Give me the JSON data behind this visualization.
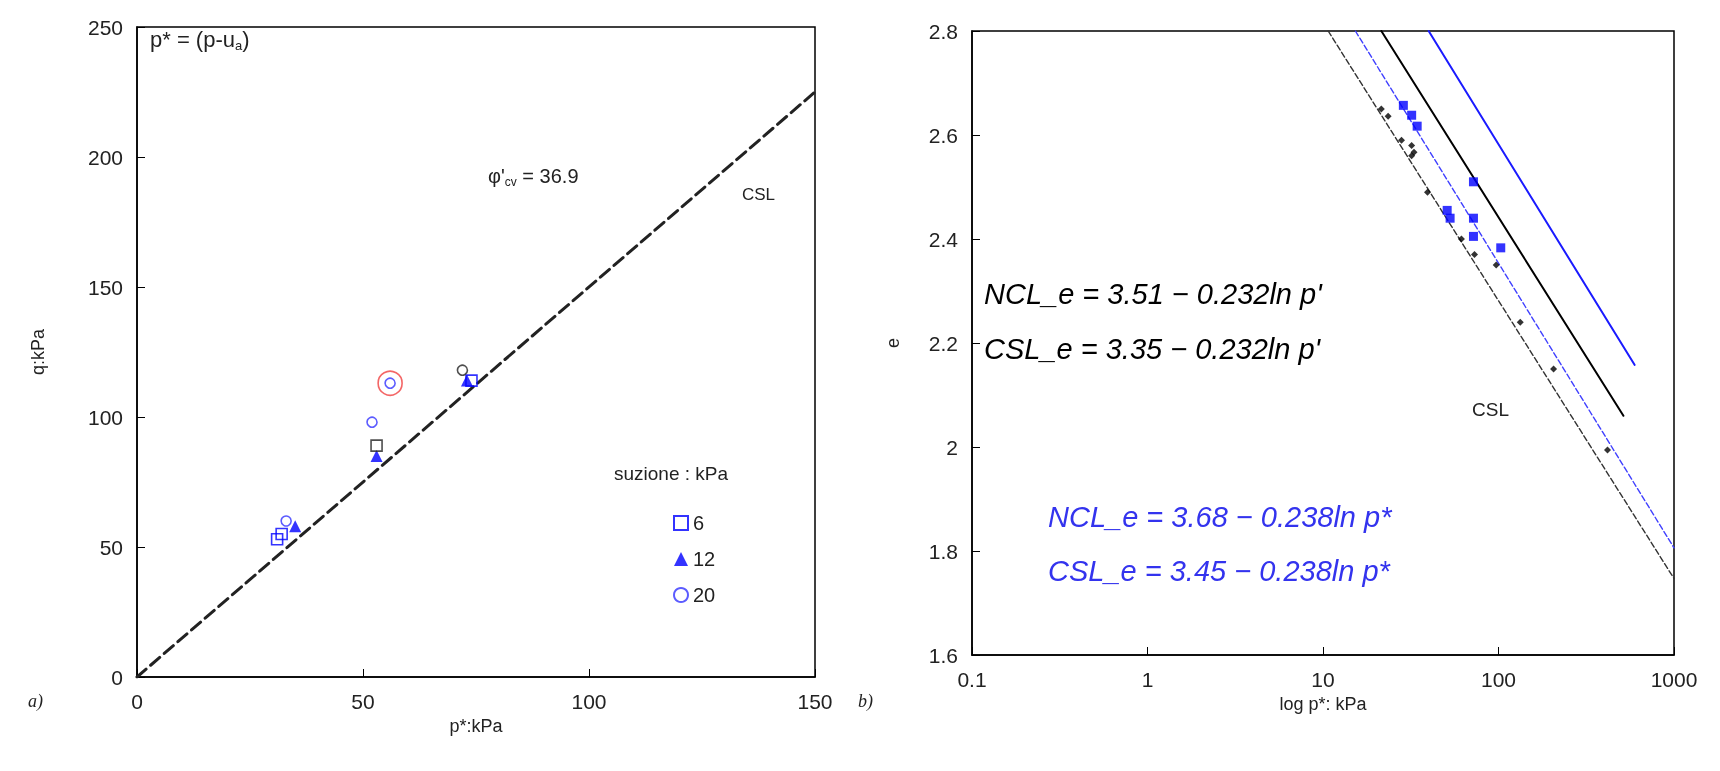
{
  "chart_data": [
    {
      "type": "scatter",
      "xlabel": "p*:kPa",
      "ylabel": "q:kPa",
      "xlim": [
        0,
        150
      ],
      "xticks": [
        0,
        50,
        100,
        150
      ],
      "ylim": [
        0,
        250
      ],
      "yticks": [
        0,
        50,
        100,
        150,
        200,
        250
      ],
      "legend": "bottom right",
      "legend_title": "suzione : kPa",
      "annotations": [
        "p* = (p-u$_{a}$)",
        "φ'$_{cv}$ = 36.9",
        "CSL",
        "a)"
      ],
      "series": [
        {
          "type": "line",
          "color": "#222222",
          "line_style": "dashed",
          "marker": "none",
          "x": [
            0,
            150
          ],
          "values": [
            0,
            225
          ]
        },
        {
          "name": "6",
          "color": "#0000ff",
          "marker": "square",
          "x": [
            31,
            32,
            74
          ],
          "values": [
            53,
            55,
            114
          ]
        },
        {
          "name": "12",
          "color": "#0000ff",
          "marker": "triangle",
          "x": [
            35,
            53,
            73
          ],
          "values": [
            58,
            85,
            114
          ]
        },
        {
          "name": "20",
          "color": "#3333ff",
          "marker": "circle",
          "x": [
            33,
            52,
            56
          ],
          "values": [
            60,
            98,
            113
          ]
        },
        {
          "color": "#222222",
          "marker": "square",
          "x": [
            53
          ],
          "values": [
            89
          ]
        },
        {
          "color": "#222222",
          "marker": "circle",
          "x": [
            72
          ],
          "values": [
            118
          ]
        },
        {
          "color": "#f04040",
          "marker": "circle",
          "x": [
            56
          ],
          "values": [
            113
          ]
        }
      ]
    },
    {
      "type": "scatter",
      "xlabel": "log p*: kPa",
      "ylabel": "e",
      "log": "x",
      "xlim": [
        0.1,
        1000
      ],
      "xticks": [
        0.1,
        1,
        10,
        100,
        1000
      ],
      "ylim": [
        1.6,
        2.8
      ],
      "yticks": [
        1.6,
        1.8,
        2,
        2.2,
        2.4,
        2.6,
        2.8
      ],
      "annotations": [
        "NCL_e = 3.51 − 0.232ln p'",
        "CSL_e = 3.35 − 0.232ln p'",
        "NCL_e = 3.68 − 0.238ln p*",
        "CSL_e = 3.45 − 0.238ln p*",
        "CSL",
        "b)"
      ],
      "series": [
        {
          "type": "line",
          "color": "#000000",
          "line_style": "solid",
          "marker": "none",
          "x": [
            21.5,
            515
          ],
          "values": [
            2.8,
            2.06
          ]
        },
        {
          "type": "line",
          "color": "#1a1aff",
          "line_style": "solid",
          "marker": "none",
          "x": [
            40,
            596
          ],
          "values": [
            2.8,
            2.158
          ]
        },
        {
          "type": "line",
          "color": "#4040ff",
          "line_style": "dashed",
          "marker": "none",
          "x": [
            15.3,
            1000
          ],
          "values": [
            2.8,
            1.806
          ]
        },
        {
          "type": "line",
          "color": "#333333",
          "line_style": "dashed",
          "marker": "none",
          "x": [
            10.7,
            1000
          ],
          "values": [
            2.8,
            1.747
          ]
        },
        {
          "color": "#000000",
          "marker": "diamond",
          "x": [
            21.5,
            23.5,
            28,
            32,
            32,
            33,
            39.4,
            61.5,
            73,
            97,
            133,
            206,
            418
          ],
          "values": [
            2.65,
            2.636,
            2.59,
            2.58,
            2.56,
            2.567,
            2.49,
            2.4,
            2.37,
            2.35,
            2.24,
            2.15,
            1.994
          ]
        },
        {
          "color": "#0000ff",
          "marker": "square",
          "x": [
            28.7,
            32,
            34.4,
            72,
            51,
            53,
            72,
            72,
            103
          ],
          "values": [
            2.657,
            2.638,
            2.617,
            2.51,
            2.455,
            2.44,
            2.44,
            2.405,
            2.383
          ]
        }
      ]
    }
  ]
}
